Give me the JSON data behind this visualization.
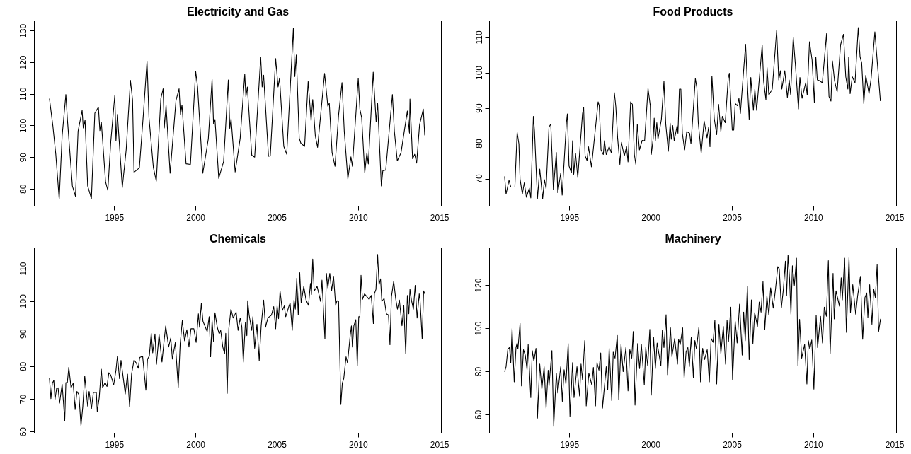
{
  "chart_data": [
    {
      "type": "line",
      "title": "Electricity and Gas",
      "xlim": [
        1990.07,
        2015.1
      ],
      "xticks": [
        1995,
        2000,
        2005,
        2010,
        2015
      ],
      "ylim": [
        74.6,
        133.2
      ],
      "yticks": [
        80,
        90,
        100,
        110,
        120,
        130
      ],
      "grid": false,
      "line_style": "solid",
      "marker": "none",
      "series": [
        {
          "color": "#000000",
          "x": [
            1991.0,
            1991.21,
            1991.39,
            1991.6,
            1991.78,
            1992.01,
            1992.1,
            1992.41,
            1992.6,
            1992.76,
            1993.01,
            1993.08,
            1993.19,
            1993.35,
            1993.58,
            1993.79,
            1994.01,
            1994.1,
            1994.19,
            1994.45,
            1994.59,
            1994.77,
            1995.02,
            1995.09,
            1995.18,
            1995.48,
            1995.72,
            1995.98,
            1996.11,
            1996.2,
            1996.53,
            1996.78,
            1997.0,
            1997.12,
            1997.39,
            1997.57,
            1997.85,
            1997.99,
            1998.06,
            1998.17,
            1998.42,
            1998.78,
            1998.97,
            1999.06,
            1999.15,
            1999.4,
            1999.67,
            1999.99,
            2000.11,
            2000.43,
            2000.77,
            2001.0,
            2001.09,
            2001.18,
            2001.41,
            2001.71,
            2002.0,
            2002.09,
            2002.17,
            2002.42,
            2002.73,
            2003.01,
            2003.08,
            2003.17,
            2003.44,
            2003.62,
            2003.99,
            2004.08,
            2004.17,
            2004.47,
            2004.58,
            2004.91,
            2005.06,
            2005.15,
            2005.41,
            2005.59,
            2006.0,
            2006.09,
            2006.18,
            2006.36,
            2006.46,
            2006.69,
            2006.91,
            2007.09,
            2007.19,
            2007.35,
            2007.49,
            2007.92,
            2008.12,
            2008.21,
            2008.38,
            2008.56,
            2008.78,
            2008.99,
            2009.13,
            2009.35,
            2009.54,
            2009.63,
            2009.99,
            2010.09,
            2010.2,
            2010.39,
            2010.52,
            2010.61,
            2010.91,
            2011.09,
            2011.18,
            2011.41,
            2011.5,
            2011.68,
            2012.09,
            2012.21,
            2012.39,
            2012.62,
            2013.01,
            2013.14,
            2013.17,
            2013.33,
            2013.46,
            2013.58,
            2013.76,
            2013.99,
            2014.08
          ],
          "values": [
            108.6,
            100,
            91,
            76.8,
            96.8,
            109.9,
            102.3,
            81,
            77.7,
            98.3,
            104.9,
            99.3,
            101.8,
            81,
            77,
            104,
            105.9,
            98.5,
            101.2,
            82.3,
            79.6,
            94.9,
            109.7,
            95.3,
            103.6,
            80.5,
            92.5,
            114.4,
            108.2,
            85.3,
            86.7,
            104,
            120.5,
            102.6,
            86.8,
            82.5,
            108.6,
            111.7,
            99.3,
            106.6,
            85,
            108,
            111.7,
            103.6,
            106.6,
            88,
            87.8,
            117.3,
            112.3,
            85,
            95.9,
            114.7,
            100.7,
            102,
            83.4,
            88.7,
            114.5,
            99.2,
            102.3,
            85.4,
            96.1,
            116.3,
            109.2,
            112.3,
            90.7,
            90.1,
            121.8,
            112.3,
            116,
            90.4,
            90.5,
            121.3,
            112.3,
            115.1,
            93.5,
            91,
            130.8,
            115.6,
            122.4,
            96.1,
            94.5,
            93.5,
            114,
            101.6,
            108.3,
            96.8,
            93.2,
            116.6,
            106.2,
            107.2,
            91.5,
            87.2,
            103.4,
            113.7,
            98.3,
            83.2,
            90.2,
            87.2,
            115.1,
            105.3,
            102.6,
            85.1,
            91.5,
            87.9,
            117,
            101.3,
            107.2,
            81,
            85.8,
            86,
            109.9,
            98.3,
            88.9,
            91.5,
            104.7,
            97.7,
            108.5,
            89.6,
            91,
            88.2,
            100.3,
            105.3,
            97
          ]
        }
      ]
    },
    {
      "type": "line",
      "title": "Food Products",
      "xlim": [
        1990.07,
        2015.1
      ],
      "xticks": [
        1995,
        2000,
        2005,
        2010,
        2015
      ],
      "ylim": [
        62.3,
        114.7
      ],
      "yticks": [
        70,
        80,
        90,
        100,
        110
      ],
      "grid": false,
      "line_style": "solid",
      "marker": "none",
      "series": [
        {
          "color": "#000000",
          "x": [
            1991.0,
            1991.09,
            1991.27,
            1991.38,
            1991.63,
            1991.77,
            1991.88,
            1991.95,
            1992.09,
            1992.21,
            1992.34,
            1992.52,
            1992.61,
            1992.77,
            1992.84,
            1993.02,
            1993.16,
            1993.34,
            1993.45,
            1993.55,
            1993.73,
            1993.84,
            1994.0,
            1994.18,
            1994.27,
            1994.45,
            1994.54,
            1994.8,
            1994.86,
            1994.96,
            1995.11,
            1995.18,
            1995.25,
            1995.36,
            1995.5,
            1995.79,
            1995.86,
            1995.95,
            1996.07,
            1996.16,
            1996.34,
            1996.43,
            1996.75,
            1996.82,
            1996.93,
            1997.07,
            1997.14,
            1997.25,
            1997.43,
            1997.57,
            1997.75,
            1997.84,
            1997.95,
            1998.09,
            1998.18,
            1998.36,
            1998.5,
            1998.59,
            1998.75,
            1998.86,
            1998.98,
            1999.07,
            1999.16,
            1999.29,
            1999.46,
            1999.61,
            1999.82,
            1999.96,
            2000.02,
            2000.14,
            2000.2,
            2000.27,
            2000.36,
            2000.43,
            2000.64,
            2000.8,
            2000.91,
            2001.07,
            2001.18,
            2001.25,
            2001.34,
            2001.43,
            2001.61,
            2001.66,
            2001.75,
            2001.84,
            2001.93,
            2002.07,
            2002.2,
            2002.38,
            2002.46,
            2002.55,
            2002.73,
            2002.82,
            2002.91,
            2003.09,
            2003.27,
            2003.45,
            2003.55,
            2003.63,
            2003.75,
            2003.89,
            2004.04,
            2004.16,
            2004.3,
            2004.39,
            2004.57,
            2004.75,
            2004.82,
            2005.0,
            2005.09,
            2005.18,
            2005.32,
            2005.41,
            2005.5,
            2005.82,
            2005.91,
            2006.04,
            2006.14,
            2006.3,
            2006.39,
            2006.5,
            2006.84,
            2006.93,
            2007.07,
            2007.14,
            2007.25,
            2007.46,
            2007.73,
            2007.86,
            2007.96,
            2008.05,
            2008.23,
            2008.39,
            2008.5,
            2008.59,
            2008.75,
            2008.89,
            2009.07,
            2009.16,
            2009.29,
            2009.52,
            2009.61,
            2009.75,
            2009.91,
            2010.05,
            2010.14,
            2010.23,
            2010.36,
            2010.54,
            2010.8,
            2010.95,
            2011.07,
            2011.16,
            2011.29,
            2011.45,
            2011.66,
            2011.84,
            2011.98,
            2012.11,
            2012.16,
            2012.25,
            2012.38,
            2012.55,
            2012.75,
            2012.86,
            2012.96,
            2013.09,
            2013.21,
            2013.41,
            2013.54,
            2013.77,
            2014.11
          ],
          "values": [
            70.7,
            65.7,
            69.6,
            67.7,
            67.7,
            83.2,
            79.9,
            70,
            65.7,
            68.9,
            64.8,
            67.4,
            64.6,
            87.7,
            83.4,
            64.4,
            72.8,
            64.4,
            69.8,
            67.2,
            84.7,
            85.5,
            67,
            77.5,
            66.1,
            71.6,
            65.4,
            85.9,
            88.4,
            73.7,
            71.7,
            80.8,
            71.3,
            77.3,
            70.4,
            88.4,
            90.3,
            76.5,
            75.2,
            79.1,
            73.4,
            77.3,
            91.8,
            90.7,
            78.2,
            76.9,
            80.8,
            76.9,
            79.1,
            77.3,
            94.4,
            90.4,
            81.6,
            74.1,
            80.4,
            76.5,
            79.1,
            74.8,
            91.8,
            91.1,
            76.9,
            74.1,
            85.5,
            78.2,
            80.9,
            80.8,
            95.6,
            90.7,
            76.9,
            81.5,
            87.2,
            80.8,
            85.9,
            81.2,
            86.8,
            97.6,
            85.5,
            77.8,
            85.8,
            81.2,
            85.1,
            80.8,
            85.1,
            82.9,
            95.4,
            95.4,
            82.9,
            78.2,
            83.4,
            82.9,
            79.9,
            85.9,
            98.4,
            95.9,
            85.9,
            77.3,
            86.4,
            81.6,
            84.7,
            79.1,
            99.1,
            87.2,
            82.5,
            91.1,
            83.4,
            87.7,
            85.9,
            98.4,
            99.9,
            83.8,
            83.8,
            91.3,
            90.7,
            92.8,
            88.5,
            108.1,
            98.9,
            86.8,
            98.7,
            89.4,
            95.4,
            89.4,
            107.9,
            97.6,
            92.4,
            101.5,
            93.7,
            95.4,
            112,
            98,
            100.6,
            95.4,
            100.6,
            93,
            98,
            93.9,
            110.1,
            101.9,
            89.8,
            98.7,
            92.8,
            97.2,
            93.7,
            108.8,
            103.6,
            91.6,
            104.5,
            98,
            97.8,
            97.2,
            111.1,
            93.3,
            92,
            103.4,
            97.8,
            94.6,
            107.9,
            110.9,
            98.9,
            95.4,
            104.5,
            94.1,
            98.9,
            97.2,
            112.8,
            104.5,
            102.8,
            91.3,
            99.3,
            94.1,
            98.4,
            111.6,
            92
          ]
        }
      ]
    },
    {
      "type": "line",
      "title": "Chemicals",
      "xlim": [
        1990.07,
        2015.1
      ],
      "xticks": [
        1995,
        2000,
        2005,
        2010,
        2015
      ],
      "ylim": [
        59.6,
        116.4
      ],
      "yticks": [
        60,
        70,
        80,
        90,
        100,
        110
      ],
      "grid": false,
      "line_style": "solid",
      "marker": "none",
      "series": [
        {
          "color": "#000000",
          "x": [
            1991.0,
            1991.09,
            1991.18,
            1991.27,
            1991.34,
            1991.44,
            1991.53,
            1991.62,
            1991.78,
            1991.94,
            1992.01,
            1992.1,
            1992.19,
            1992.33,
            1992.46,
            1992.58,
            1992.69,
            1992.81,
            1992.94,
            1993.05,
            1993.17,
            1993.35,
            1993.44,
            1993.58,
            1993.7,
            1993.88,
            1993.94,
            1994.06,
            1994.19,
            1994.27,
            1994.42,
            1994.54,
            1994.65,
            1994.77,
            1994.95,
            1995.09,
            1995.18,
            1995.31,
            1995.4,
            1995.58,
            1995.66,
            1995.8,
            1995.93,
            1996.05,
            1996.2,
            1996.34,
            1996.46,
            1996.55,
            1996.73,
            1996.93,
            1997.03,
            1997.14,
            1997.26,
            1997.35,
            1997.49,
            1997.58,
            1997.74,
            1997.92,
            1998.03,
            1998.15,
            1998.33,
            1998.46,
            1998.56,
            1998.74,
            1998.92,
            1999.04,
            1999.17,
            1999.31,
            1999.45,
            1999.58,
            1999.7,
            1999.88,
            2000.02,
            2000.16,
            2000.23,
            2000.34,
            2000.44,
            2000.7,
            2000.82,
            2000.91,
            2001.0,
            2001.09,
            2001.18,
            2001.32,
            2001.44,
            2001.53,
            2001.66,
            2001.77,
            2001.84,
            2001.93,
            2002.03,
            2002.16,
            2002.3,
            2002.48,
            2002.6,
            2002.73,
            2002.83,
            2002.92,
            2003.05,
            2003.14,
            2003.19,
            2003.28,
            2003.44,
            2003.51,
            2003.62,
            2003.76,
            2003.9,
            2004.02,
            2004.17,
            2004.29,
            2004.43,
            2004.65,
            2004.79,
            2004.91,
            2005.0,
            2005.09,
            2005.18,
            2005.32,
            2005.44,
            2005.53,
            2005.72,
            2005.8,
            2005.93,
            2006.04,
            2006.12,
            2006.21,
            2006.3,
            2006.39,
            2006.48,
            2006.64,
            2006.78,
            2006.93,
            2007.05,
            2007.11,
            2007.19,
            2007.28,
            2007.46,
            2007.67,
            2007.76,
            2007.94,
            2008.03,
            2008.12,
            2008.24,
            2008.35,
            2008.47,
            2008.6,
            2008.68,
            2008.78,
            2008.92,
            2009.01,
            2009.1,
            2009.24,
            2009.33,
            2009.49,
            2009.57,
            2009.63,
            2009.72,
            2009.84,
            2009.93,
            2010.02,
            2010.09,
            2010.16,
            2010.25,
            2010.38,
            2010.66,
            2010.79,
            2010.92,
            2010.98,
            2011.08,
            2011.18,
            2011.27,
            2011.36,
            2011.44,
            2011.58,
            2011.72,
            2011.85,
            2011.94,
            2012.03,
            2012.17,
            2012.29,
            2012.4,
            2012.52,
            2012.68,
            2012.79,
            2012.91,
            2013.01,
            2013.1,
            2013.17,
            2013.26,
            2013.38,
            2013.49,
            2013.61,
            2013.74,
            2013.79,
            2013.92,
            2014.01,
            2014.08
          ],
          "values": [
            76.4,
            70.2,
            74.9,
            75.8,
            69.9,
            73.3,
            73.5,
            68.8,
            74.6,
            63.5,
            75.1,
            75.1,
            79.8,
            73.5,
            74.9,
            66.8,
            72.4,
            71.4,
            61.9,
            67.7,
            77.1,
            67.9,
            72.4,
            67,
            72.1,
            72.1,
            66.2,
            70.5,
            79.2,
            73.5,
            75.1,
            73.9,
            78.1,
            77.4,
            74.4,
            78.9,
            83.2,
            76.3,
            81.9,
            74.9,
            71.6,
            77.7,
            67.7,
            77.7,
            82,
            81.1,
            79.5,
            82.8,
            83.2,
            72.8,
            82.3,
            83.2,
            90.2,
            84.2,
            90,
            80.7,
            89.9,
            81.4,
            87,
            92.5,
            86,
            88.8,
            82.3,
            87.4,
            73.7,
            87,
            94.1,
            87.9,
            91.3,
            86,
            91.6,
            91.6,
            87.4,
            96.2,
            92.1,
            99.3,
            93.9,
            90.7,
            95.3,
            83,
            94.1,
            87.7,
            96.5,
            92.1,
            90,
            91.1,
            86,
            83.9,
            90.2,
            71.8,
            91.6,
            97.6,
            94.9,
            96.7,
            91.1,
            94.9,
            92.2,
            81.4,
            93.5,
            89.5,
            100.2,
            95.8,
            91.1,
            95.3,
            85.6,
            93,
            81.8,
            92.5,
            100.4,
            92.1,
            94.9,
            95.8,
            98.4,
            91.6,
            98.6,
            94.7,
            103.2,
            97.2,
            98.6,
            95.3,
            98.4,
            99.5,
            91.1,
            100.4,
            97.6,
            107.1,
            95.8,
            108.8,
            99.5,
            104.6,
            100.4,
            98.8,
            105.5,
            102.1,
            113,
            103.2,
            104.6,
            100,
            106.5,
            88.5,
            108.6,
            104.1,
            108.6,
            103.2,
            107.7,
            98.8,
            100.2,
            100,
            68.4,
            74.9,
            76.4,
            83,
            81.1,
            89.3,
            92.5,
            86,
            92.5,
            94.4,
            80.2,
            95.3,
            95.3,
            108,
            100.6,
            102.3,
            100.6,
            101.8,
            93.2,
            102.3,
            103.7,
            114.4,
            105.1,
            106.9,
            100,
            100.9,
            96.2,
            95.8,
            86.7,
            101.4,
            106.2,
            100.9,
            97.6,
            100.4,
            92.5,
            98.8,
            83.9,
            101.8,
            96.2,
            103.7,
            100.4,
            97.6,
            104.9,
            94.9,
            102.3,
            100.4,
            88.5,
            103.2,
            102.3
          ]
        }
      ]
    },
    {
      "type": "line",
      "title": "Machinery",
      "xlim": [
        1990.07,
        2015.1
      ],
      "xticks": [
        1995,
        2000,
        2005,
        2010,
        2015
      ],
      "ylim": [
        51.5,
        137.4
      ],
      "yticks": [
        60,
        80,
        100,
        120
      ],
      "grid": false,
      "line_style": "solid",
      "marker": "none",
      "series": [
        {
          "color": "#000000",
          "x": [
            1991.0,
            1991.09,
            1991.2,
            1991.3,
            1991.38,
            1991.46,
            1991.59,
            1991.7,
            1991.77,
            1991.82,
            1991.95,
            1992.04,
            1992.16,
            1992.27,
            1992.38,
            1992.45,
            1992.61,
            1992.7,
            1992.8,
            1992.93,
            1993.02,
            1993.16,
            1993.29,
            1993.43,
            1993.55,
            1993.68,
            1993.73,
            1993.91,
            1994.02,
            1994.18,
            1994.27,
            1994.45,
            1994.55,
            1994.66,
            1994.77,
            1994.91,
            1995.02,
            1995.18,
            1995.27,
            1995.45,
            1995.61,
            1995.7,
            1995.79,
            1995.93,
            1996.02,
            1996.18,
            1996.36,
            1996.46,
            1996.59,
            1996.68,
            1996.8,
            1996.91,
            1997.02,
            1997.25,
            1997.34,
            1997.43,
            1997.59,
            1997.68,
            1997.79,
            1997.93,
            1998.02,
            1998.16,
            1998.29,
            1998.46,
            1998.59,
            1998.7,
            1998.82,
            1998.91,
            1999.02,
            1999.18,
            1999.3,
            1999.41,
            1999.59,
            1999.68,
            1999.8,
            1999.93,
            2000.02,
            2000.16,
            2000.27,
            2000.38,
            2000.61,
            2000.7,
            2000.8,
            2000.93,
            2001.02,
            2001.2,
            2001.29,
            2001.46,
            2001.63,
            2001.7,
            2001.8,
            2001.95,
            2002.04,
            2002.16,
            2002.27,
            2002.36,
            2002.48,
            2002.61,
            2002.7,
            2002.8,
            2002.95,
            2003.05,
            2003.18,
            2003.29,
            2003.46,
            2003.59,
            2003.7,
            2003.82,
            2003.93,
            2004.04,
            2004.18,
            2004.3,
            2004.45,
            2004.59,
            2004.68,
            2004.77,
            2004.91,
            2005.02,
            2005.18,
            2005.3,
            2005.45,
            2005.61,
            2005.7,
            2005.8,
            2005.93,
            2006.04,
            2006.18,
            2006.27,
            2006.38,
            2006.55,
            2006.66,
            2006.77,
            2006.89,
            2007.0,
            2007.13,
            2007.25,
            2007.36,
            2007.52,
            2007.66,
            2007.8,
            2007.89,
            2008.02,
            2008.14,
            2008.27,
            2008.34,
            2008.43,
            2008.52,
            2008.61,
            2008.7,
            2008.82,
            2008.95,
            2009.04,
            2009.14,
            2009.27,
            2009.45,
            2009.59,
            2009.68,
            2009.77,
            2009.89,
            2010.02,
            2010.16,
            2010.25,
            2010.43,
            2010.55,
            2010.66,
            2010.79,
            2010.91,
            2011.02,
            2011.2,
            2011.27,
            2011.38,
            2011.59,
            2011.7,
            2011.77,
            2011.91,
            2012.02,
            2012.18,
            2012.27,
            2012.41,
            2012.59,
            2012.71,
            2012.88,
            2013.02,
            2013.16,
            2013.27,
            2013.34,
            2013.45,
            2013.59,
            2013.7,
            2013.8,
            2013.91,
            2014.0,
            2014.12
          ],
          "values": [
            80,
            82.3,
            90.5,
            91.2,
            84.2,
            100,
            75.3,
            91.2,
            93.3,
            90.5,
            102.4,
            73.4,
            90.2,
            87.7,
            80.9,
            92.6,
            68,
            89.8,
            84.9,
            90.8,
            58.5,
            83.5,
            71.9,
            82.3,
            63.1,
            80.7,
            73.4,
            89.8,
            54.7,
            79.3,
            70.1,
            82.3,
            66.3,
            80.9,
            74.3,
            93,
            59.3,
            84.2,
            68,
            82.3,
            68.7,
            83.5,
            76.4,
            94.4,
            64.1,
            79.3,
            73.9,
            82,
            64.1,
            84.2,
            80.7,
            88.7,
            63.1,
            82.3,
            71.5,
            90.8,
            66.6,
            89.1,
            86.3,
            96.8,
            66.9,
            92.6,
            80,
            91.2,
            71.1,
            90.2,
            86.3,
            98.6,
            64.5,
            93,
            81.4,
            92.6,
            73.9,
            91.2,
            82.8,
            99.6,
            69.1,
            96.1,
            81.4,
            93.3,
            82.8,
            99.2,
            91.2,
            106.4,
            78.6,
            100.3,
            87,
            95.4,
            83.5,
            95,
            92.6,
            100.3,
            77.1,
            89.1,
            91.2,
            82.3,
            96.1,
            77.1,
            94.4,
            90.5,
            100.8,
            75.3,
            90.8,
            85.6,
            90.2,
            75.3,
            95.4,
            93.6,
            103.8,
            74.3,
            102,
            88.4,
            101,
            83.5,
            103.8,
            94,
            109.9,
            76.4,
            103.4,
            93.3,
            111.3,
            87.7,
            107.6,
            94.4,
            119.7,
            85.6,
            113.3,
            93,
            107.4,
            101,
            112.3,
            107.6,
            121.7,
            99.6,
            115.1,
            106.2,
            118.9,
            109.5,
            118.3,
            128.7,
            127.7,
            109.5,
            117.9,
            131.2,
            115.1,
            134.1,
            123.5,
            106.7,
            129.1,
            120,
            132.6,
            82.8,
            104.3,
            86.3,
            92.6,
            74.3,
            94.4,
            90.5,
            94.7,
            71.9,
            106.2,
            91.2,
            105.7,
            93.3,
            109.9,
            105.7,
            131.5,
            88.4,
            125.6,
            104.5,
            117.5,
            110.4,
            123.5,
            113.3,
            132.6,
            98.2,
            132.9,
            107.4,
            120.3,
            106.7,
            115.1,
            124.2,
            95,
            114.4,
            116.5,
            105.2,
            120.3,
            102,
            118.3,
            114.4,
            129.6,
            98.6,
            104.5
          ]
        }
      ]
    }
  ]
}
